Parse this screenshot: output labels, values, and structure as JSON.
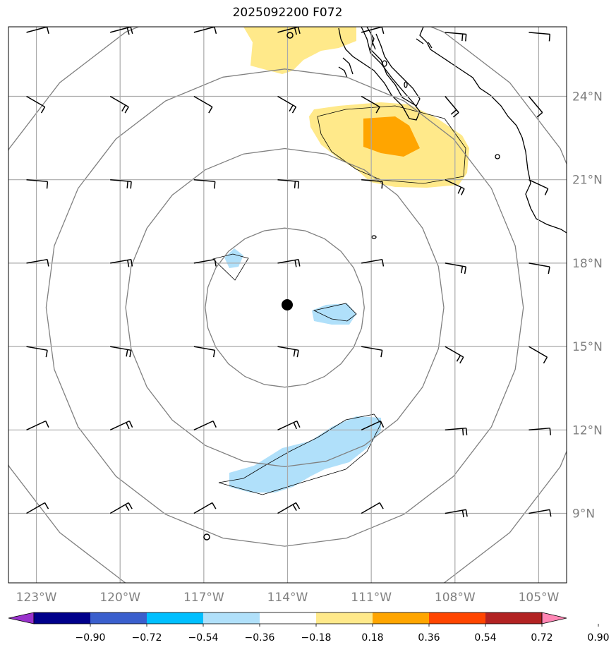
{
  "title": "2025092200 F072",
  "map": {
    "lon_range": [
      -124,
      -104
    ],
    "lat_range": [
      6.5,
      26.5
    ],
    "lon_ticks": [
      {
        "value": -123,
        "label": "123°W"
      },
      {
        "value": -120,
        "label": "120°W"
      },
      {
        "value": -117,
        "label": "117°W"
      },
      {
        "value": -114,
        "label": "114°W"
      },
      {
        "value": -111,
        "label": "111°W"
      },
      {
        "value": -108,
        "label": "108°W"
      },
      {
        "value": -105,
        "label": "105°W"
      }
    ],
    "lat_ticks": [
      {
        "value": 24,
        "label": "24°N"
      },
      {
        "value": 21,
        "label": "21°N"
      },
      {
        "value": 18,
        "label": "18°N"
      },
      {
        "value": 15,
        "label": "15°N"
      },
      {
        "value": 12,
        "label": "12°N"
      },
      {
        "value": 9,
        "label": "9°N"
      }
    ],
    "center": {
      "lon": -114.1,
      "lat": 16.4
    },
    "range_rings_deg": [
      2.85,
      5.7,
      8.55,
      11.4
    ],
    "grid_color": "#aaaaaa",
    "ring_color": "#808080"
  },
  "colorbar": {
    "colors": [
      "#9932cc",
      "#00008b",
      "#3a5fcd",
      "#00bfff",
      "#b0e0fa",
      "#ffffff",
      "#ffe98a",
      "#ffa500",
      "#ff4500",
      "#b22222",
      "#ff86b4"
    ],
    "labels": [
      "−0.90",
      "−0.72",
      "−0.54",
      "−0.36",
      "−0.18",
      "0.18",
      "0.36",
      "0.54",
      "0.72",
      "0.90"
    ]
  },
  "fill_colors": {
    "light_yellow": "#ffe98a",
    "orange": "#ffa500",
    "light_blue": "#b0e0fa"
  },
  "wind_barbs_note": "barbs drawn on 3-degree grid"
}
